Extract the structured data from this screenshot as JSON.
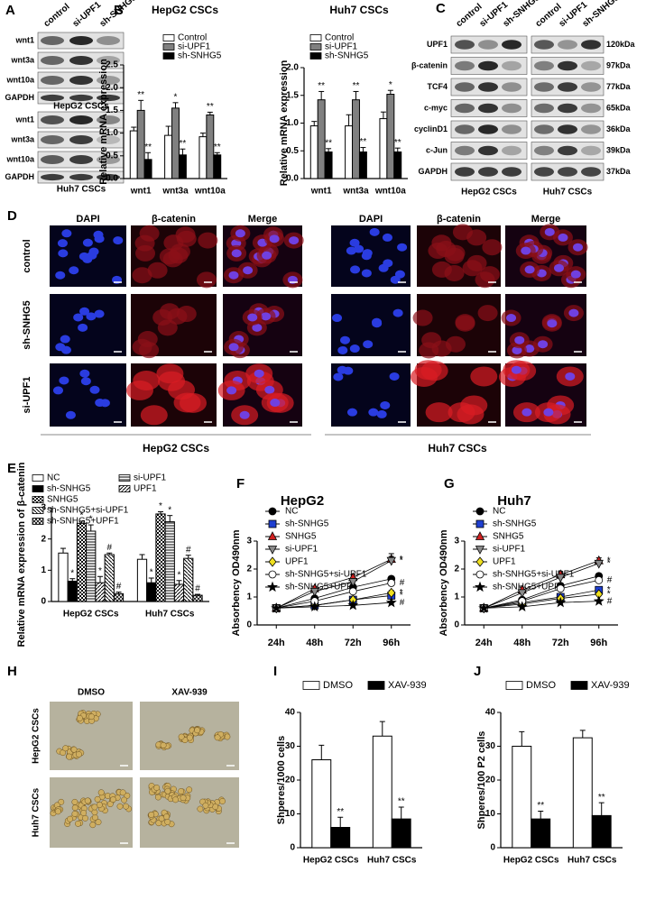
{
  "panel_labels": [
    "A",
    "B",
    "C",
    "D",
    "E",
    "F",
    "G",
    "H",
    "I",
    "J"
  ],
  "blot_a": {
    "lanes": [
      "control",
      "si-UPF1",
      "sh-SNHG5"
    ],
    "panels": [
      {
        "rows": [
          "wnt1",
          "wnt3a",
          "wnt10a",
          "GAPDH"
        ],
        "label": "HepG2 CSCs"
      },
      {
        "rows": [
          "wnt1",
          "wnt3a",
          "wnt10a",
          "GAPDH"
        ],
        "label": "Huh7 CSCs"
      }
    ]
  },
  "blot_c": {
    "lanes": [
      "control",
      "si-UPF1",
      "sh-SNHG5"
    ],
    "rows": [
      "UPF1",
      "β-catenin",
      "TCF4",
      "c-myc",
      "cyclinD1",
      "c-Jun",
      "GAPDH"
    ],
    "sizes": [
      "120kDa",
      "97kDa",
      "77kDa",
      "65kDa",
      "36kDa",
      "39kDa",
      "37kDa"
    ],
    "panels": [
      "HepG2 CSCs",
      "Huh7 CSCs"
    ]
  },
  "micro_d": {
    "columns": [
      "DAPI",
      "β-catenin",
      "Merge"
    ],
    "rows": [
      "control",
      "sh-SNHG5",
      "si-UPF1"
    ],
    "groups": [
      "HepG2 CSCs",
      "Huh7 CSCs"
    ]
  },
  "micro_h": {
    "columns": [
      "DMSO",
      "XAV-939"
    ],
    "rows": [
      "HepG2 CSCs",
      "Huh7 CSCs"
    ]
  },
  "chart_data": [
    {
      "type": "bar",
      "title": "HepG2 CSCs",
      "ylabel": "Relative mRNA expression",
      "categories": [
        "wnt1",
        "wnt3a",
        "wnt10a"
      ],
      "series": [
        {
          "name": "Control",
          "color": "#ffffff",
          "values": [
            1.05,
            0.95,
            0.92
          ],
          "errors": [
            0.08,
            0.2,
            0.08
          ]
        },
        {
          "name": "si-UPF1",
          "color": "#808080",
          "values": [
            1.5,
            1.55,
            1.4
          ],
          "errors": [
            0.22,
            0.12,
            0.06
          ],
          "annotations": [
            "**",
            "*",
            "**"
          ]
        },
        {
          "name": "sh-SNHG5",
          "color": "#000000",
          "values": [
            0.42,
            0.52,
            0.52
          ],
          "errors": [
            0.15,
            0.13,
            0.05
          ],
          "annotations": [
            "**",
            "**",
            "**"
          ]
        }
      ],
      "ylim": [
        0,
        2.5
      ],
      "yticks": [
        {
          "value": 0,
          "label": "0.0"
        },
        0.5,
        {
          "value": 1,
          "label": "1.0"
        },
        1.5,
        {
          "value": 2,
          "label": "2.0"
        },
        2.5
      ],
      "legend": "upper left"
    },
    {
      "type": "bar",
      "title": "Huh7 CSCs",
      "ylabel": "Relative mRNA expression",
      "categories": [
        "wnt1",
        "wnt3a",
        "wnt10a"
      ],
      "series": [
        {
          "name": "Control",
          "color": "#ffffff",
          "values": [
            0.95,
            0.95,
            1.08
          ],
          "errors": [
            0.08,
            0.2,
            0.12
          ]
        },
        {
          "name": "si-UPF1",
          "color": "#808080",
          "values": [
            1.42,
            1.42,
            1.52
          ],
          "errors": [
            0.15,
            0.15,
            0.07
          ],
          "annotations": [
            "**",
            "**",
            "*"
          ]
        },
        {
          "name": "sh-SNHG5",
          "color": "#000000",
          "values": [
            0.48,
            0.48,
            0.48
          ],
          "errors": [
            0.06,
            0.08,
            0.07
          ],
          "annotations": [
            "**",
            "**",
            "**"
          ]
        }
      ],
      "ylim": [
        0,
        2
      ],
      "yticks": [
        {
          "value": 0,
          "label": "0.0"
        },
        0.5,
        {
          "value": 1,
          "label": "1.0"
        },
        1.5,
        {
          "value": 2,
          "label": "2.0"
        }
      ],
      "legend": "upper left"
    },
    {
      "type": "bar",
      "ylabel": "Relative mRNA expression of β-catenin",
      "categories": [
        "HepG2 CSCs",
        "Huh7 CSCs"
      ],
      "series": [
        {
          "name": "NC",
          "color": "#ffffff",
          "values": [
            1.55,
            1.35
          ],
          "errors": [
            0.15,
            0.15
          ]
        },
        {
          "name": "sh-SNHG5",
          "color": "#000000",
          "values": [
            0.65,
            0.6
          ],
          "errors": [
            0.08,
            0.15
          ],
          "annotations": [
            "*",
            "*"
          ]
        },
        {
          "name": "SNHG5",
          "color": "#000000",
          "pattern": "checker",
          "values": [
            2.5,
            2.8
          ],
          "errors": [
            0.07,
            0.07
          ],
          "annotations": [
            "*",
            "*"
          ]
        },
        {
          "name": "si-UPF1",
          "color": "#000000",
          "pattern": "hlines",
          "values": [
            2.25,
            2.55
          ],
          "errors": [
            0.2,
            0.2
          ],
          "annotations": [
            "*",
            "*"
          ]
        },
        {
          "name": "UPF1",
          "color": "#000000",
          "pattern": "diag",
          "values": [
            0.6,
            0.55
          ],
          "errors": [
            0.2,
            0.12
          ],
          "annotations": [
            "*",
            "*"
          ]
        },
        {
          "name": "sh-SNHG5+si-UPF1",
          "color": "#000000",
          "pattern": "diag2",
          "values": [
            1.5,
            1.38
          ],
          "errors": [
            0.05,
            0.1
          ],
          "annotations": [
            "#",
            "#"
          ]
        },
        {
          "name": "sh-SNHG5+UPF1",
          "color": "#000000",
          "pattern": "cross",
          "values": [
            0.25,
            0.2
          ],
          "errors": [
            0.05,
            0.03
          ],
          "annotations": [
            "#",
            "#"
          ]
        }
      ],
      "ylim": [
        0,
        3
      ],
      "yticks": [
        0,
        1,
        2,
        3
      ],
      "legend": "upper left"
    },
    {
      "type": "line",
      "title": "HepG2",
      "ylabel": "Absorbency OD490nm",
      "categories": [
        "24h",
        "48h",
        "72h",
        "96h"
      ],
      "series": [
        {
          "name": "NC",
          "color": "#000000",
          "marker": "circle",
          "values": [
            0.6,
            0.95,
            1.35,
            1.65
          ],
          "errors": [
            0.03,
            0.08,
            0.1,
            0.08
          ]
        },
        {
          "name": "sh-SNHG5",
          "color": "#1f3fd0",
          "marker": "square",
          "values": [
            0.6,
            0.7,
            0.9,
            1.05
          ],
          "errors": [
            0.03,
            0.05,
            0.06,
            0.1
          ],
          "end_label": "*"
        },
        {
          "name": "SNHG5",
          "color": "#d02020",
          "marker": "triangle",
          "values": [
            0.6,
            1.3,
            1.7,
            2.35
          ],
          "errors": [
            0.03,
            0.08,
            0.1,
            0.2
          ],
          "end_label": "*"
        },
        {
          "name": "si-UPF1",
          "color": "#8a8a8a",
          "marker": "triangle-down",
          "values": [
            0.6,
            1.2,
            1.55,
            2.3
          ],
          "errors": [
            0.03,
            0.08,
            0.1,
            0.15
          ],
          "end_label": "*"
        },
        {
          "name": "UPF1",
          "color": "#f0e020",
          "marker": "diamond",
          "values": [
            0.6,
            0.7,
            0.9,
            1.15
          ],
          "errors": [
            0.03,
            0.05,
            0.06,
            0.08
          ],
          "end_label": "*"
        },
        {
          "name": "sh-SNHG5+si-UPF1",
          "color": "#ffffff",
          "marker": "circle",
          "values": [
            0.6,
            0.85,
            1.2,
            1.5
          ],
          "errors": [
            0.03,
            0.06,
            0.08,
            0.1
          ],
          "end_label": "#"
        },
        {
          "name": "sh-SNHG5+UPF1",
          "color": "#000000",
          "marker": "star",
          "values": [
            0.6,
            0.65,
            0.7,
            0.8
          ],
          "errors": [
            0.03,
            0.04,
            0.04,
            0.05
          ],
          "end_label": "#"
        }
      ],
      "ylim": [
        0,
        3
      ],
      "yticks": [
        0,
        1,
        2,
        3
      ],
      "legend": "upper left"
    },
    {
      "type": "line",
      "title": "Huh7",
      "ylabel": "Absorbency OD490nm",
      "categories": [
        "24h",
        "48h",
        "72h",
        "96h"
      ],
      "series": [
        {
          "name": "NC",
          "color": "#000000",
          "marker": "circle",
          "values": [
            0.6,
            0.9,
            1.4,
            1.75
          ],
          "errors": [
            0.03,
            0.08,
            0.1,
            0.08
          ]
        },
        {
          "name": "sh-SNHG5",
          "color": "#1f3fd0",
          "marker": "square",
          "values": [
            0.6,
            0.8,
            1.0,
            1.25
          ],
          "errors": [
            0.03,
            0.05,
            0.06,
            0.08
          ],
          "end_label": "*"
        },
        {
          "name": "SNHG5",
          "color": "#d02020",
          "marker": "triangle",
          "values": [
            0.6,
            1.25,
            1.8,
            2.3
          ],
          "errors": [
            0.03,
            0.1,
            0.1,
            0.1
          ],
          "end_label": "*"
        },
        {
          "name": "si-UPF1",
          "color": "#8a8a8a",
          "marker": "triangle-down",
          "values": [
            0.6,
            1.15,
            1.7,
            2.2
          ],
          "errors": [
            0.03,
            0.08,
            0.1,
            0.1
          ],
          "end_label": "*"
        },
        {
          "name": "UPF1",
          "color": "#f0e020",
          "marker": "diamond",
          "values": [
            0.6,
            0.75,
            0.95,
            1.1
          ],
          "errors": [
            0.03,
            0.05,
            0.06,
            0.06
          ],
          "end_label": "*"
        },
        {
          "name": "sh-SNHG5+si-UPF1",
          "color": "#ffffff",
          "marker": "circle",
          "values": [
            0.6,
            0.85,
            1.3,
            1.6
          ],
          "errors": [
            0.03,
            0.06,
            0.08,
            0.1
          ],
          "end_label": "#"
        },
        {
          "name": "sh-SNHG5+UPF1",
          "color": "#000000",
          "marker": "star",
          "values": [
            0.6,
            0.65,
            0.8,
            0.85
          ],
          "errors": [
            0.03,
            0.04,
            0.04,
            0.05
          ],
          "end_label": "#"
        }
      ],
      "ylim": [
        0,
        3
      ],
      "yticks": [
        0,
        1,
        2,
        3
      ],
      "legend": "upper left"
    },
    {
      "type": "bar",
      "ylabel": "Shperes/1000 cells",
      "categories": [
        "HepG2 CSCs",
        "Huh7 CSCs"
      ],
      "series": [
        {
          "name": "DMSO",
          "color": "#ffffff",
          "values": [
            26,
            33
          ],
          "errors": [
            4.3,
            4.3
          ]
        },
        {
          "name": "XAV-939",
          "color": "#000000",
          "values": [
            6,
            8.5
          ],
          "errors": [
            3,
            3.5
          ],
          "annotations": [
            "**",
            "**"
          ]
        }
      ],
      "ylim": [
        0,
        40
      ],
      "yticks": [
        0,
        10,
        20,
        30,
        40
      ],
      "legend": "top"
    },
    {
      "type": "bar",
      "ylabel": "Shperes/100 P2 cells",
      "categories": [
        "HepG2 CSCs",
        "Huh7 CSCs"
      ],
      "series": [
        {
          "name": "DMSO",
          "color": "#ffffff",
          "values": [
            30,
            32.5
          ],
          "errors": [
            4.3,
            2.2
          ]
        },
        {
          "name": "XAV-939",
          "color": "#000000",
          "values": [
            8.5,
            9.5
          ],
          "errors": [
            2.3,
            3.8
          ],
          "annotations": [
            "**",
            "**"
          ]
        }
      ],
      "ylim": [
        0,
        40
      ],
      "yticks": [
        0,
        10,
        20,
        30,
        40
      ],
      "legend": "top"
    }
  ]
}
